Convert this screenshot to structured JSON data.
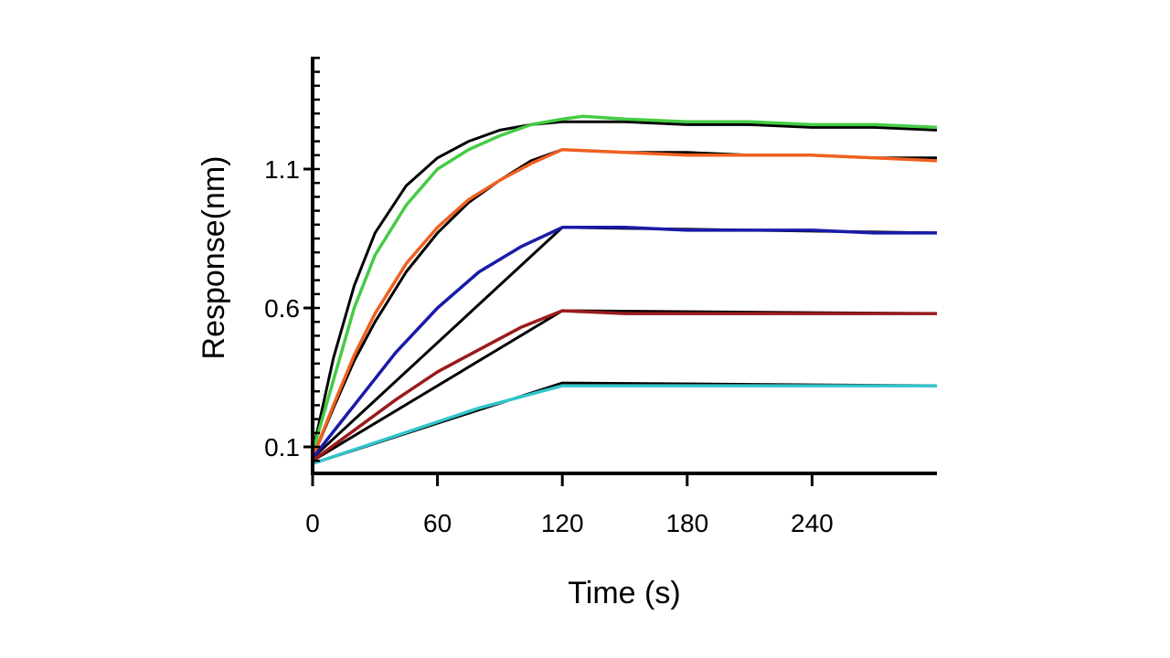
{
  "chart_data": {
    "type": "line",
    "xlabel": "Time (s)",
    "ylabel": "Response(nm)",
    "xlim": [
      0,
      300
    ],
    "ylim": [
      0,
      1.5
    ],
    "x_ticks": [
      0,
      60,
      120,
      180,
      240
    ],
    "x_tick_labels": [
      "0",
      "60",
      "120",
      "180",
      "240"
    ],
    "y_ticks": [
      0.1,
      0.6,
      1.1
    ],
    "y_tick_labels": [
      "0.1",
      "0.6",
      "1.1"
    ],
    "grid": false,
    "legend": "none",
    "series": [
      {
        "color": "#44cc44",
        "x": [
          0,
          10,
          20,
          30,
          45,
          60,
          75,
          90,
          105,
          120,
          130,
          150,
          180,
          210,
          240,
          270,
          300
        ],
        "y": [
          0.08,
          0.34,
          0.6,
          0.79,
          0.97,
          1.1,
          1.17,
          1.22,
          1.26,
          1.28,
          1.29,
          1.28,
          1.27,
          1.27,
          1.26,
          1.26,
          1.25
        ]
      },
      {
        "color": "#f06020",
        "x": [
          0,
          10,
          20,
          30,
          45,
          60,
          75,
          90,
          105,
          120,
          150,
          180,
          210,
          240,
          270,
          300
        ],
        "y": [
          0.06,
          0.25,
          0.43,
          0.58,
          0.76,
          0.89,
          0.99,
          1.06,
          1.12,
          1.17,
          1.16,
          1.15,
          1.15,
          1.15,
          1.14,
          1.13
        ]
      },
      {
        "color": "#1a1aaa",
        "x": [
          0,
          20,
          40,
          60,
          80,
          100,
          120,
          150,
          180,
          210,
          240,
          270,
          300
        ],
        "y": [
          0.06,
          0.25,
          0.44,
          0.6,
          0.73,
          0.82,
          0.89,
          0.89,
          0.88,
          0.88,
          0.88,
          0.87,
          0.87
        ]
      },
      {
        "color": "#9a1a1a",
        "x": [
          0,
          20,
          40,
          60,
          80,
          100,
          120,
          150,
          180,
          210,
          240,
          270,
          300
        ],
        "y": [
          0.05,
          0.16,
          0.27,
          0.37,
          0.45,
          0.53,
          0.59,
          0.58,
          0.58,
          0.58,
          0.58,
          0.58,
          0.58
        ]
      },
      {
        "color": "#33c4cc",
        "x": [
          0,
          20,
          40,
          60,
          80,
          100,
          120,
          150,
          180,
          210,
          240,
          270,
          300
        ],
        "y": [
          0.04,
          0.09,
          0.14,
          0.19,
          0.24,
          0.28,
          0.32,
          0.32,
          0.32,
          0.32,
          0.32,
          0.32,
          0.32
        ]
      }
    ],
    "fit_curves": [
      {
        "color": "#000000",
        "x": [
          0,
          10,
          20,
          30,
          45,
          60,
          75,
          90,
          105,
          120,
          150,
          180,
          210,
          240,
          270,
          300
        ],
        "y": [
          0.08,
          0.42,
          0.68,
          0.87,
          1.04,
          1.14,
          1.2,
          1.24,
          1.26,
          1.27,
          1.27,
          1.26,
          1.26,
          1.25,
          1.25,
          1.24
        ]
      },
      {
        "color": "#000000",
        "x": [
          0,
          10,
          20,
          30,
          45,
          60,
          75,
          90,
          105,
          120,
          150,
          180,
          210,
          240,
          270,
          300
        ],
        "y": [
          0.06,
          0.24,
          0.41,
          0.55,
          0.73,
          0.87,
          0.98,
          1.06,
          1.13,
          1.17,
          1.16,
          1.16,
          1.15,
          1.15,
          1.14,
          1.14
        ]
      },
      {
        "color": "#000000",
        "x": [
          0,
          120,
          300
        ],
        "y": [
          0.06,
          0.89,
          0.87
        ]
      },
      {
        "color": "#000000",
        "x": [
          0,
          120,
          300
        ],
        "y": [
          0.05,
          0.59,
          0.58
        ]
      },
      {
        "color": "#000000",
        "x": [
          0,
          120,
          300
        ],
        "y": [
          0.04,
          0.33,
          0.32
        ]
      }
    ]
  }
}
